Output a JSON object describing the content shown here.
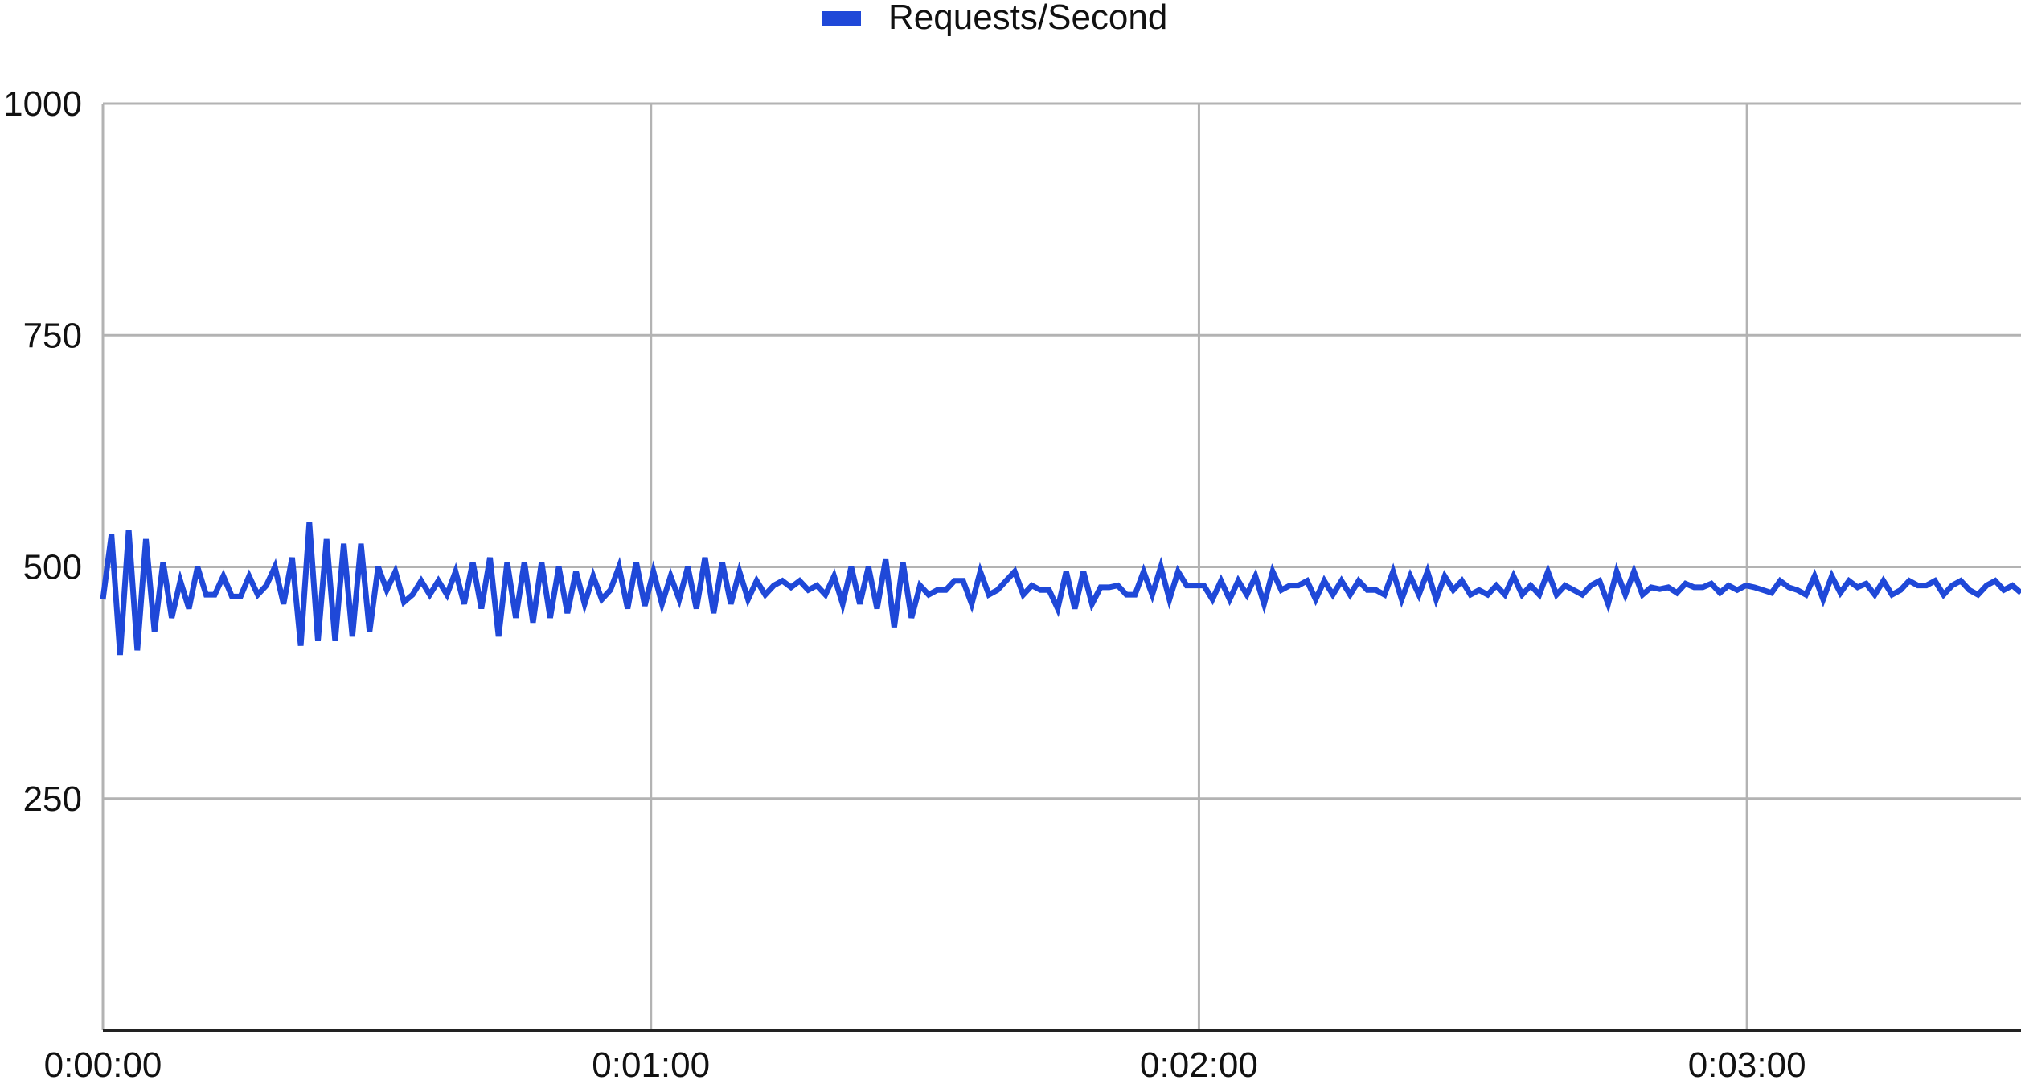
{
  "chart_data": {
    "type": "line",
    "title": "",
    "xlabel": "",
    "ylabel": "",
    "legend": {
      "position": "top-center",
      "entries": [
        "Requests/Second"
      ]
    },
    "grid": true,
    "ylim": [
      0,
      1000
    ],
    "xlim_seconds": [
      0,
      210
    ],
    "y_ticks": [
      "1000",
      "750",
      "500",
      "250"
    ],
    "y_tick_values": [
      1000,
      750,
      500,
      250
    ],
    "x_ticks": [
      "0:00:00",
      "0:01:00",
      "0:02:00",
      "0:03:00"
    ],
    "x_tick_values_seconds": [
      0,
      60,
      120,
      180
    ],
    "series": [
      {
        "name": "Requests/Second",
        "color": "#1f48d8",
        "values": [
          465,
          535,
          405,
          540,
          410,
          530,
          430,
          505,
          445,
          485,
          455,
          500,
          470,
          470,
          490,
          468,
          468,
          490,
          470,
          480,
          500,
          460,
          510,
          415,
          548,
          420,
          530,
          420,
          525,
          425,
          525,
          430,
          500,
          475,
          495,
          462,
          470,
          485,
          470,
          485,
          470,
          495,
          460,
          505,
          455,
          510,
          425,
          505,
          445,
          505,
          440,
          505,
          445,
          500,
          450,
          495,
          460,
          490,
          465,
          475,
          500,
          455,
          505,
          458,
          495,
          460,
          490,
          465,
          500,
          455,
          510,
          450,
          505,
          460,
          495,
          465,
          485,
          470,
          480,
          485,
          478,
          485,
          475,
          480,
          470,
          490,
          460,
          500,
          460,
          500,
          455,
          508,
          435,
          505,
          445,
          480,
          470,
          475,
          475,
          485,
          485,
          460,
          495,
          470,
          475,
          485,
          495,
          470,
          480,
          475,
          475,
          455,
          495,
          455,
          495,
          460,
          478,
          478,
          480,
          470,
          470,
          495,
          470,
          500,
          465,
          495,
          480,
          480,
          480,
          465,
          485,
          465,
          485,
          470,
          490,
          460,
          495,
          475,
          480,
          480,
          485,
          465,
          485,
          470,
          485,
          470,
          485,
          475,
          475,
          470,
          495,
          465,
          490,
          470,
          495,
          465,
          490,
          475,
          485,
          470,
          475,
          470,
          480,
          470,
          490,
          470,
          480,
          470,
          495,
          470,
          480,
          475,
          470,
          480,
          485,
          460,
          495,
          470,
          495,
          470,
          478,
          476,
          478,
          472,
          482,
          478,
          478,
          482,
          472,
          480,
          475,
          480,
          478,
          475,
          472,
          485,
          478,
          475,
          470,
          490,
          465,
          490,
          472,
          485,
          478,
          482,
          470,
          485,
          470,
          475,
          485,
          480,
          480,
          485,
          470,
          480,
          485,
          475,
          470,
          480,
          485,
          475,
          480,
          472
        ],
        "note": "sampled roughly every second from 0:00:00 to ~0:03:30"
      }
    ]
  }
}
